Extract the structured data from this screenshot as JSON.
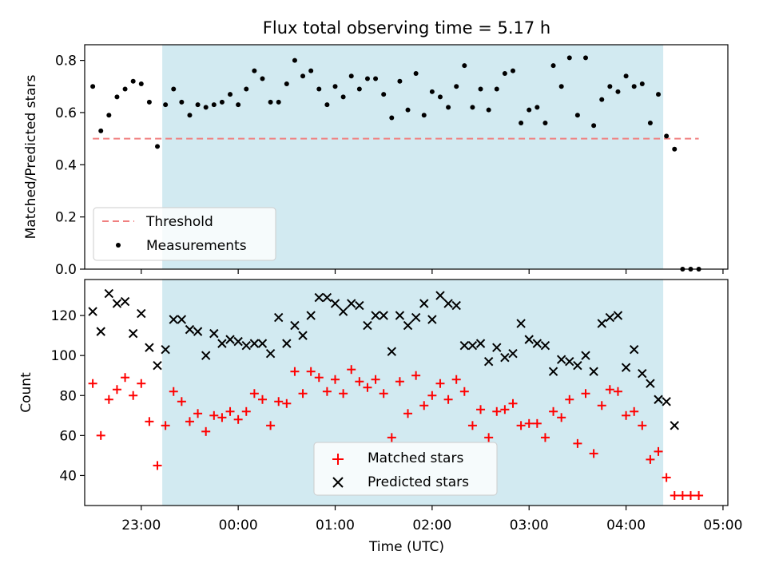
{
  "title": "Flux total observing time = 5.17 h",
  "chart_data": [
    {
      "type": "scatter",
      "ylabel": "Matched/Predicted stars",
      "ylim": [
        0,
        0.86
      ],
      "yticks": [
        0.0,
        0.2,
        0.4,
        0.6,
        0.8
      ],
      "ytick_labels": [
        "0.0",
        "0.2",
        "0.4",
        "0.6",
        "0.8"
      ],
      "xlim": [
        "22:25",
        "05:03"
      ],
      "threshold": {
        "name": "Threshold",
        "value": 0.5,
        "x_range": [
          "22:30",
          "04:45"
        ],
        "color": "#f08080"
      },
      "shaded_region": {
        "x_range": [
          "23:13",
          "04:23"
        ],
        "color": "#add8e6"
      },
      "series": [
        {
          "name": "Measurements",
          "marker": "dot",
          "color": "#000000",
          "x": [
            "22:30",
            "22:35",
            "22:40",
            "22:45",
            "22:50",
            "22:55",
            "23:00",
            "23:05",
            "23:10",
            "23:15",
            "23:20",
            "23:25",
            "23:30",
            "23:35",
            "23:40",
            "23:45",
            "23:50",
            "23:55",
            "00:00",
            "00:05",
            "00:10",
            "00:15",
            "00:20",
            "00:25",
            "00:30",
            "00:35",
            "00:40",
            "00:45",
            "00:50",
            "00:55",
            "01:00",
            "01:05",
            "01:10",
            "01:15",
            "01:20",
            "01:25",
            "01:30",
            "01:35",
            "01:40",
            "01:45",
            "01:50",
            "01:55",
            "02:00",
            "02:05",
            "02:10",
            "02:15",
            "02:20",
            "02:25",
            "02:30",
            "02:35",
            "02:40",
            "02:45",
            "02:50",
            "02:55",
            "03:00",
            "03:05",
            "03:10",
            "03:15",
            "03:20",
            "03:25",
            "03:30",
            "03:35",
            "03:40",
            "03:45",
            "03:50",
            "03:55",
            "04:00",
            "04:05",
            "04:10",
            "04:15",
            "04:20",
            "04:25",
            "04:30",
            "04:35",
            "04:40",
            "04:45"
          ],
          "y": [
            0.7,
            0.53,
            0.59,
            0.66,
            0.69,
            0.72,
            0.71,
            0.64,
            0.47,
            0.63,
            0.69,
            0.64,
            0.59,
            0.63,
            0.62,
            0.63,
            0.64,
            0.67,
            0.63,
            0.69,
            0.76,
            0.73,
            0.64,
            0.64,
            0.71,
            0.8,
            0.74,
            0.76,
            0.69,
            0.63,
            0.7,
            0.66,
            0.74,
            0.69,
            0.73,
            0.73,
            0.67,
            0.58,
            0.72,
            0.61,
            0.75,
            0.59,
            0.68,
            0.66,
            0.62,
            0.7,
            0.78,
            0.62,
            0.69,
            0.61,
            0.69,
            0.75,
            0.76,
            0.56,
            0.61,
            0.62,
            0.56,
            0.78,
            0.7,
            0.81,
            0.59,
            0.81,
            0.55,
            0.65,
            0.7,
            0.68,
            0.74,
            0.7,
            0.71,
            0.56,
            0.67,
            0.51,
            0.46,
            0.0,
            0.0,
            0.0
          ]
        }
      ]
    },
    {
      "type": "scatter",
      "xlabel": "Time (UTC)",
      "ylabel": "Count",
      "ylim": [
        25,
        138
      ],
      "yticks": [
        40,
        60,
        80,
        100,
        120
      ],
      "ytick_labels": [
        "40",
        "60",
        "80",
        "100",
        "120"
      ],
      "xlim": [
        "22:25",
        "05:03"
      ],
      "xticks": [
        "23:00",
        "00:00",
        "01:00",
        "02:00",
        "03:00",
        "04:00",
        "05:00"
      ],
      "xtick_labels": [
        "23:00",
        "00:00",
        "01:00",
        "02:00",
        "03:00",
        "04:00",
        "05:00"
      ],
      "shaded_region": {
        "x_range": [
          "23:13",
          "04:23"
        ],
        "color": "#add8e6"
      },
      "series": [
        {
          "name": "Matched stars",
          "marker": "plus",
          "color": "#ff0000",
          "x": [
            "22:30",
            "22:35",
            "22:40",
            "22:45",
            "22:50",
            "22:55",
            "23:00",
            "23:05",
            "23:10",
            "23:15",
            "23:20",
            "23:25",
            "23:30",
            "23:35",
            "23:40",
            "23:45",
            "23:50",
            "23:55",
            "00:00",
            "00:05",
            "00:10",
            "00:15",
            "00:20",
            "00:25",
            "00:30",
            "00:35",
            "00:40",
            "00:45",
            "00:50",
            "00:55",
            "01:00",
            "01:05",
            "01:10",
            "01:15",
            "01:20",
            "01:25",
            "01:30",
            "01:35",
            "01:40",
            "01:45",
            "01:50",
            "01:55",
            "02:00",
            "02:05",
            "02:10",
            "02:15",
            "02:20",
            "02:25",
            "02:30",
            "02:35",
            "02:40",
            "02:45",
            "02:50",
            "02:55",
            "03:00",
            "03:05",
            "03:10",
            "03:15",
            "03:20",
            "03:25",
            "03:30",
            "03:35",
            "03:40",
            "03:45",
            "03:50",
            "03:55",
            "04:00",
            "04:05",
            "04:10",
            "04:15",
            "04:20",
            "04:25",
            "04:30",
            "04:35",
            "04:40",
            "04:45"
          ],
          "y": [
            86,
            60,
            78,
            83,
            89,
            80,
            86,
            67,
            45,
            65,
            82,
            77,
            67,
            71,
            62,
            70,
            69,
            72,
            68,
            72,
            81,
            78,
            65,
            77,
            76,
            92,
            81,
            92,
            89,
            82,
            88,
            81,
            93,
            87,
            84,
            88,
            81,
            59,
            87,
            71,
            90,
            75,
            80,
            86,
            78,
            88,
            82,
            65,
            73,
            59,
            72,
            73,
            76,
            65,
            66,
            66,
            59,
            72,
            69,
            78,
            56,
            81,
            51,
            75,
            83,
            82,
            70,
            72,
            65,
            48,
            52,
            39,
            30,
            30,
            30,
            30
          ]
        },
        {
          "name": "Predicted stars",
          "marker": "x",
          "color": "#000000",
          "x": [
            "22:30",
            "22:35",
            "22:40",
            "22:45",
            "22:50",
            "22:55",
            "23:00",
            "23:05",
            "23:10",
            "23:15",
            "23:20",
            "23:25",
            "23:30",
            "23:35",
            "23:40",
            "23:45",
            "23:50",
            "23:55",
            "00:00",
            "00:05",
            "00:10",
            "00:15",
            "00:20",
            "00:25",
            "00:30",
            "00:35",
            "00:40",
            "00:45",
            "00:50",
            "00:55",
            "01:00",
            "01:05",
            "01:10",
            "01:15",
            "01:20",
            "01:25",
            "01:30",
            "01:35",
            "01:40",
            "01:45",
            "01:50",
            "01:55",
            "02:00",
            "02:05",
            "02:10",
            "02:15",
            "02:20",
            "02:25",
            "02:30",
            "02:35",
            "02:40",
            "02:45",
            "02:50",
            "02:55",
            "03:00",
            "03:05",
            "03:10",
            "03:15",
            "03:20",
            "03:25",
            "03:30",
            "03:35",
            "03:40",
            "03:45",
            "03:50",
            "03:55",
            "04:00",
            "04:05",
            "04:10",
            "04:15",
            "04:20",
            "04:25",
            "04:30"
          ],
          "y": [
            122,
            112,
            131,
            126,
            127,
            111,
            121,
            104,
            95,
            103,
            118,
            118,
            113,
            112,
            100,
            111,
            106,
            108,
            107,
            105,
            106,
            106,
            101,
            119,
            106,
            115,
            110,
            120,
            129,
            129,
            126,
            122,
            126,
            125,
            115,
            120,
            120,
            102,
            120,
            115,
            119,
            126,
            118,
            130,
            126,
            125,
            105,
            105,
            106,
            97,
            104,
            99,
            101,
            116,
            108,
            106,
            105,
            92,
            98,
            97,
            95,
            100,
            92,
            116,
            119,
            120,
            94,
            103,
            91,
            86,
            78,
            77,
            65
          ]
        }
      ],
      "legend": {
        "placement": "lower-center"
      }
    }
  ],
  "legend_top": {
    "placement": "lower-left",
    "entries": [
      "Threshold",
      "Measurements"
    ]
  }
}
